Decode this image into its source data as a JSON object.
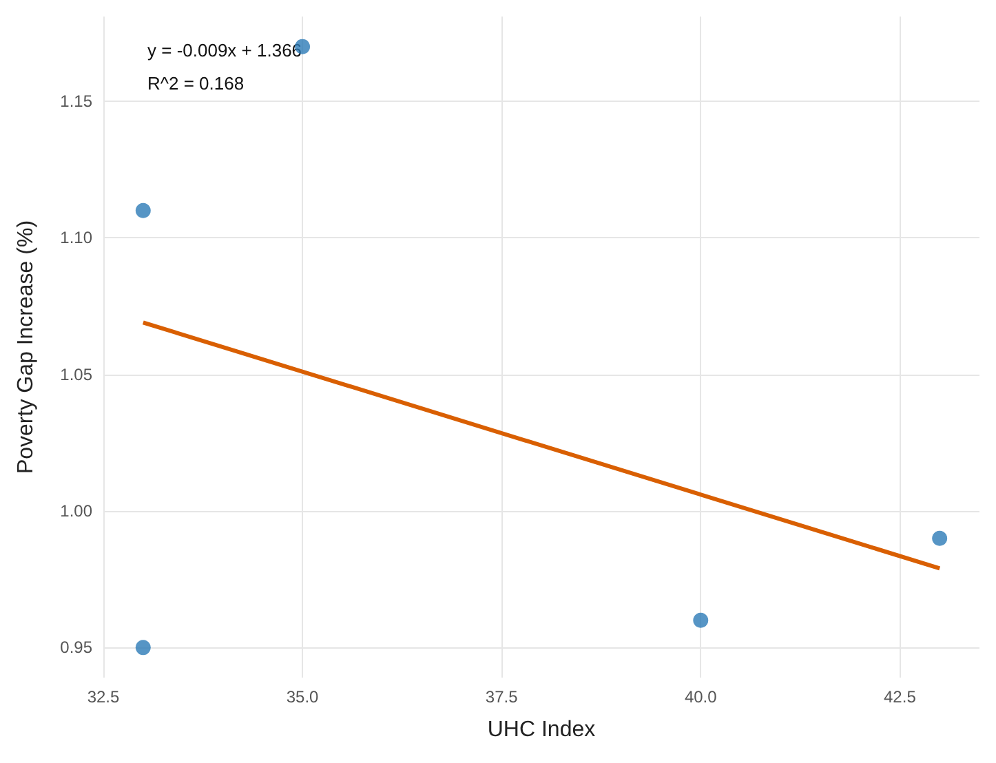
{
  "chart_data": {
    "type": "scatter",
    "xlabel": "UHC Index",
    "ylabel": "Poverty Gap Increase (%)",
    "annotations": [
      "y = -0.009x + 1.366",
      "R^2 = 0.168"
    ],
    "series": [
      {
        "color": "#2c7bb6",
        "marker": "circle",
        "x": [
          33,
          33,
          35,
          40,
          43
        ],
        "values": [
          1.11,
          0.95,
          1.17,
          0.96,
          0.99
        ]
      },
      {
        "type": "line",
        "color": "#d95f02",
        "x": [
          33,
          43
        ],
        "values": [
          1.069,
          0.979
        ]
      }
    ],
    "xlim": [
      32.5,
      43.5
    ],
    "xticks": [
      {
        "value": 32.5,
        "label": "32.5"
      },
      {
        "value": 35,
        "label": "35.0"
      },
      {
        "value": 37.5,
        "label": "37.5"
      },
      {
        "value": 40,
        "label": "40.0"
      },
      {
        "value": 42.5,
        "label": "42.5"
      }
    ],
    "ylim": [
      0.939,
      1.181
    ],
    "yticks": [
      {
        "value": 0.95,
        "label": "0.95"
      },
      {
        "value": 1,
        "label": "1.00"
      },
      {
        "value": 1.05,
        "label": "1.05"
      },
      {
        "value": 1.1,
        "label": "1.10"
      },
      {
        "value": 1.15,
        "label": "1.15"
      }
    ],
    "grid": true
  }
}
